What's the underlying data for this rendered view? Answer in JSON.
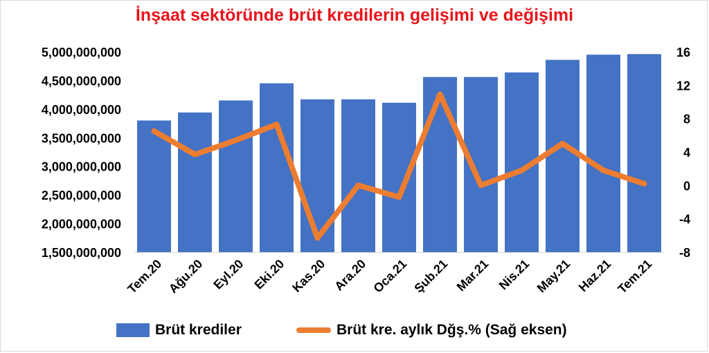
{
  "chart_data": {
    "type": "bar",
    "title": "İnşaat sektöründe brüt kredilerin gelişimi ve değişimi",
    "categories": [
      "Tem.20",
      "Ağu.20",
      "Eyl.20",
      "Eki.20",
      "Kas.20",
      "Ara.20",
      "Oca.21",
      "Şub.21",
      "Mar.21",
      "Nis.21",
      "May.21",
      "Haz.21",
      "Tem.21"
    ],
    "series": [
      {
        "name": "Brüt krediler",
        "type": "bar",
        "axis": "left",
        "color": "#4472c4",
        "values": [
          3800000000,
          3940000000,
          4150000000,
          4450000000,
          4170000000,
          4170000000,
          4110000000,
          4560000000,
          4560000000,
          4640000000,
          4860000000,
          4950000000,
          4960000000
        ]
      },
      {
        "name": "Brüt kre. aylık Dğş.% (Sağ eksen)",
        "type": "line",
        "axis": "right",
        "color": "#ed7d31",
        "values": [
          6.5,
          3.7,
          5.4,
          7.3,
          -6.3,
          0,
          -1.4,
          10.9,
          0,
          1.8,
          5.0,
          1.8,
          0.2
        ]
      }
    ],
    "yaxis_left": {
      "ylim": [
        1500000000,
        5000000000
      ],
      "ticks": [
        1500000000,
        2000000000,
        2500000000,
        3000000000,
        3500000000,
        4000000000,
        4500000000,
        5000000000
      ],
      "tick_labels": [
        "1,500,000,000",
        "2,000,000,000",
        "2,500,000,000",
        "3,000,000,000",
        "3,500,000,000",
        "4,000,000,000",
        "4,500,000,000",
        "5,000,000,000"
      ]
    },
    "yaxis_right": {
      "ylim": [
        -8,
        16
      ],
      "ticks": [
        -8,
        -4,
        0,
        4,
        8,
        12,
        16
      ],
      "tick_labels": [
        "-8",
        "-4",
        "0",
        "4",
        "8",
        "12",
        "16"
      ]
    },
    "grid": false,
    "legend_position": "bottom"
  }
}
